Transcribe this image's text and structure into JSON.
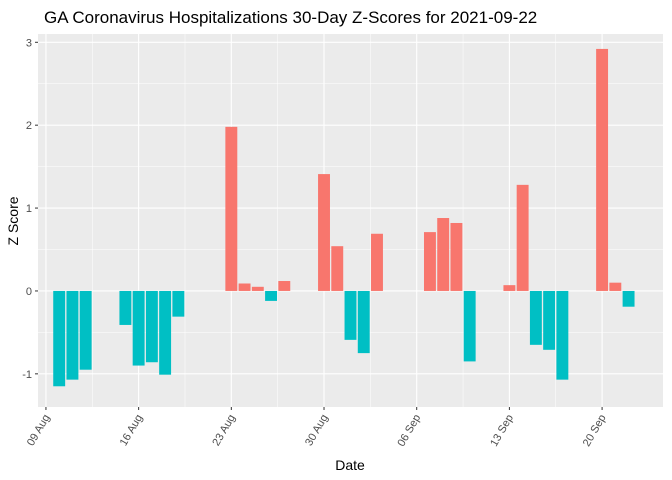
{
  "chart_data": {
    "type": "bar",
    "title": "GA Coronavirus Hospitalizations 30-Day Z-Scores for 2021-09-22",
    "xlabel": "Date",
    "ylabel": "Z Score",
    "ylim": [
      -1.4,
      3.1
    ],
    "y_ticks": [
      -1,
      0,
      1,
      2,
      3
    ],
    "y_tick_labels": [
      "-1",
      "0",
      "1",
      "2",
      "3"
    ],
    "x_ticks": [
      {
        "day": 0,
        "label": "09 Aug"
      },
      {
        "day": 7,
        "label": "16 Aug"
      },
      {
        "day": 14,
        "label": "23 Aug"
      },
      {
        "day": 21,
        "label": "30 Aug"
      },
      {
        "day": 28,
        "label": "06 Sep"
      },
      {
        "day": 35,
        "label": "13 Sep"
      },
      {
        "day": 42,
        "label": "20 Sep"
      }
    ],
    "x_range_days": [
      -0.6,
      46.6
    ],
    "colors": {
      "positive": "#F8766D",
      "negative": "#00BFC4",
      "panel": "#EBEBEB",
      "grid": "#FFFFFF"
    },
    "days": [
      1,
      2,
      3,
      6,
      7,
      8,
      9,
      10,
      14,
      15,
      16,
      17,
      18,
      21,
      22,
      23,
      24,
      25,
      29,
      30,
      31,
      32,
      35,
      36,
      37,
      38,
      39,
      42,
      43,
      44
    ],
    "values": [
      -1.15,
      -1.07,
      -0.95,
      -0.41,
      -0.9,
      -0.86,
      -1.01,
      -0.31,
      1.98,
      0.09,
      0.05,
      -0.12,
      0.12,
      1.41,
      0.54,
      -0.59,
      -0.75,
      0.69,
      0.71,
      0.88,
      0.82,
      -0.85,
      0.07,
      1.28,
      -0.65,
      -0.71,
      -1.07,
      2.92,
      0.1,
      -0.19
    ]
  }
}
